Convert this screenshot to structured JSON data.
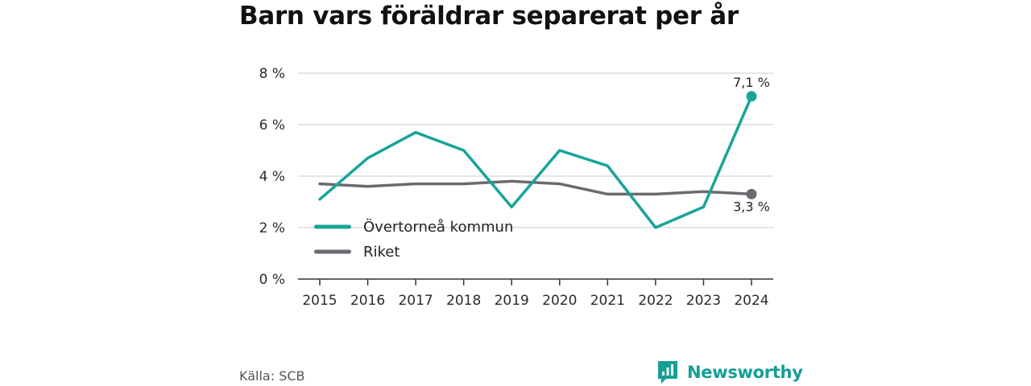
{
  "title": "Barn vars föräldrar separerat per år",
  "source": "Källa: SCB",
  "brand": {
    "name": "Newsworthy",
    "icon": "newsworthy-logo-icon",
    "color": "#159f94"
  },
  "chart_data": {
    "type": "line",
    "title": "Barn vars föräldrar separerat per år",
    "x": [
      "2015",
      "2016",
      "2017",
      "2018",
      "2019",
      "2020",
      "2021",
      "2022",
      "2023",
      "2024"
    ],
    "ylim": [
      0,
      8
    ],
    "yticks": [
      0,
      2,
      4,
      6,
      8
    ],
    "ytick_labels": [
      "0 %",
      "2 %",
      "4 %",
      "6 %",
      "8 %"
    ],
    "grid": true,
    "legend_position": "lower-left",
    "series": [
      {
        "name": "Övertorneå kommun",
        "color": "#18a499",
        "values": [
          3.1,
          4.7,
          5.7,
          5.0,
          2.8,
          5.0,
          4.4,
          2.0,
          2.8,
          7.1
        ],
        "end_label": "7,1 %"
      },
      {
        "name": "Riket",
        "color": "#6b6a70",
        "values": [
          3.7,
          3.6,
          3.7,
          3.7,
          3.8,
          3.7,
          3.3,
          3.3,
          3.4,
          3.3
        ],
        "end_label": "3,3 %"
      }
    ]
  }
}
